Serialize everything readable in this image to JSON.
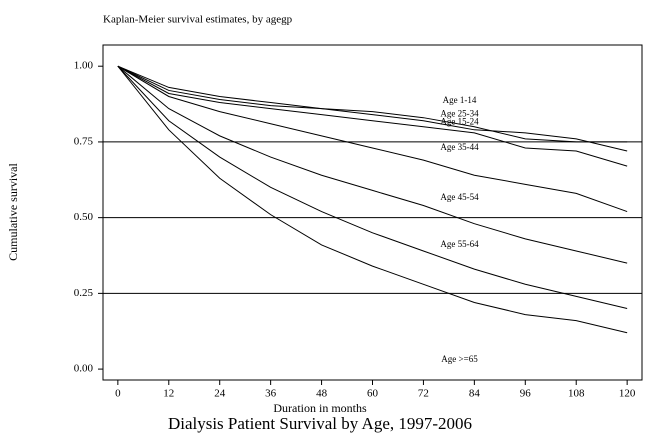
{
  "chart_data": {
    "type": "line",
    "title": "Kaplan-Meier survival estimates, by agegp",
    "caption": "Dialysis Patient Survival by Age, 1997-2006",
    "x_label": "Duration in months",
    "y_label": "Cumulative survival",
    "x": [
      0,
      12,
      24,
      36,
      48,
      60,
      72,
      84,
      96,
      108,
      120
    ],
    "series": [
      {
        "name": "Age 1-14",
        "color": "#000000",
        "values": [
          1,
          0.93,
          0.9,
          0.88,
          0.86,
          0.85,
          0.83,
          0.8,
          0.76,
          0.75,
          0.75
        ]
      },
      {
        "name": "Age 25-34",
        "color": "#000000",
        "values": [
          1,
          0.92,
          0.89,
          0.87,
          0.86,
          0.84,
          0.82,
          0.79,
          0.78,
          0.76,
          0.72
        ]
      },
      {
        "name": "Age 15-24",
        "color": "#000000",
        "values": [
          1,
          0.91,
          0.88,
          0.86,
          0.84,
          0.82,
          0.8,
          0.78,
          0.73,
          0.72,
          0.67
        ]
      },
      {
        "name": "Age 35-44",
        "color": "#000000",
        "values": [
          1,
          0.9,
          0.85,
          0.81,
          0.77,
          0.73,
          0.69,
          0.64,
          0.61,
          0.58,
          0.52
        ]
      },
      {
        "name": "Age 45-54",
        "color": "#000000",
        "values": [
          1,
          0.86,
          0.77,
          0.7,
          0.64,
          0.59,
          0.54,
          0.48,
          0.43,
          0.39,
          0.35
        ]
      },
      {
        "name": "Age 55-64",
        "color": "#000000",
        "values": [
          1,
          0.82,
          0.7,
          0.6,
          0.52,
          0.45,
          0.39,
          0.33,
          0.28,
          0.24,
          0.2
        ]
      },
      {
        "name": "Age >=65",
        "color": "#000000",
        "values": [
          1,
          0.79,
          0.63,
          0.51,
          0.41,
          0.34,
          0.28,
          0.22,
          0.18,
          0.16,
          0.12
        ]
      }
    ],
    "xlim": [
      -3.5,
      123.5
    ],
    "xticks": [
      0,
      12,
      24,
      36,
      48,
      60,
      72,
      84,
      96,
      108,
      120
    ],
    "ylim": [
      -0.036,
      1.07
    ],
    "yticks": [
      {
        "value": 0,
        "label": "0.00"
      },
      {
        "value": 0.25,
        "label": "0.25"
      },
      {
        "value": 0.5,
        "label": "0.50"
      },
      {
        "value": 0.75,
        "label": "0.75"
      },
      {
        "value": 1,
        "label": "1.00"
      }
    ],
    "grid": true
  }
}
